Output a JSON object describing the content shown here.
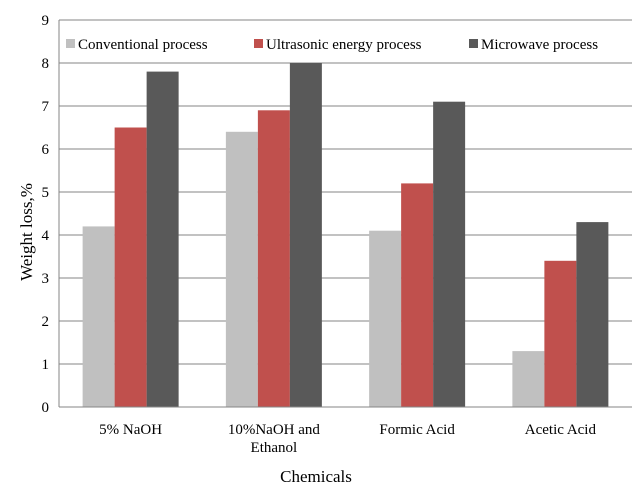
{
  "chart_data": {
    "type": "bar",
    "title": "",
    "xlabel": "Chemicals",
    "ylabel": "Weight loss,%",
    "ylim": [
      0,
      9
    ],
    "yticks": [
      "0",
      "1",
      "2",
      "3",
      "4",
      "5",
      "6",
      "7",
      "8",
      "9"
    ],
    "grid": true,
    "legend_position": "top",
    "categories": [
      [
        "5% NaOH"
      ],
      [
        "10%NaOH and",
        "Ethanol"
      ],
      [
        "Formic Acid"
      ],
      [
        "Acetic Acid"
      ]
    ],
    "series": [
      {
        "name": "Conventional process",
        "color": "#c0c0c0",
        "values": [
          4.2,
          6.4,
          4.1,
          1.3
        ]
      },
      {
        "name": "Ultrasonic energy process",
        "color": "#c0504d",
        "values": [
          6.5,
          6.9,
          5.2,
          3.4
        ]
      },
      {
        "name": "Microwave process",
        "color": "#595959",
        "values": [
          7.8,
          8.0,
          7.1,
          4.3
        ]
      }
    ]
  }
}
